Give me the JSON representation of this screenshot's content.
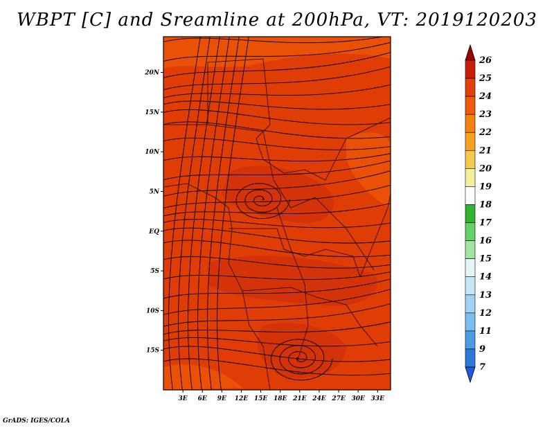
{
  "title": "WBPT [C] and Sreamline at 200hPa, VT: 2019120203",
  "credit": "GrADS: IGES/COLA",
  "map": {
    "lon_ticks": [
      "3E",
      "6E",
      "9E",
      "12E",
      "15E",
      "18E",
      "21E",
      "24E",
      "27E",
      "30E",
      "33E"
    ],
    "lat_ticks": [
      "20N",
      "15N",
      "10N",
      "5N",
      "EQ",
      "5S",
      "10S",
      "15S"
    ],
    "lon_range": [
      0,
      35
    ],
    "lat_range": [
      -20,
      24.5
    ],
    "background_color": "#e03c06",
    "warm_patch_color": "#cf2d0a",
    "cool_patch_color": "#ee5a08",
    "streamline_color": "#000000"
  },
  "colorbar": {
    "labels": [
      "26",
      "25",
      "24",
      "23",
      "22",
      "21",
      "20",
      "19",
      "18",
      "17",
      "16",
      "15",
      "14",
      "13",
      "12",
      "11",
      "9",
      "7"
    ],
    "colors": [
      "#a00000",
      "#c81e0a",
      "#e0400a",
      "#f05a0a",
      "#f5820a",
      "#f5a020",
      "#f5c850",
      "#f5f0a0",
      "#ffffff",
      "#32b432",
      "#64d264",
      "#a0e6a0",
      "#e6f5f5",
      "#c8e6fa",
      "#a0d2f5",
      "#78bef0",
      "#4b9be6",
      "#2d78dc",
      "#1e5adc"
    ]
  }
}
